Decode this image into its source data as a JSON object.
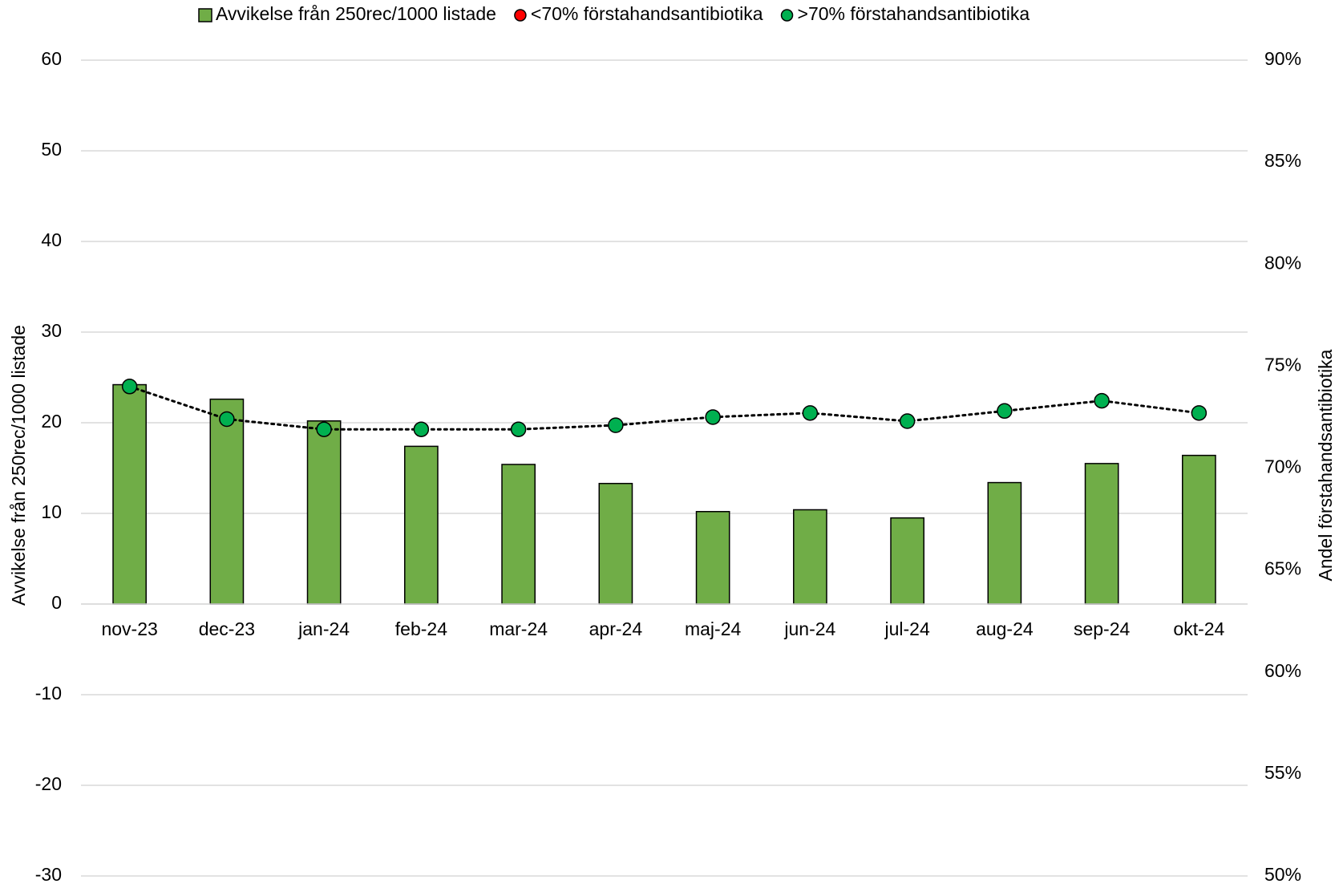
{
  "chart_data": {
    "type": "bar_line",
    "categories": [
      "nov-23",
      "dec-23",
      "jan-24",
      "feb-24",
      "mar-24",
      "apr-24",
      "maj-24",
      "jun-24",
      "jul-24",
      "aug-24",
      "sep-24",
      "okt-24"
    ],
    "series": [
      {
        "name": "Avvikelse från 250rec/1000 listade",
        "color": "#70ad47",
        "type": "bar",
        "values": [
          24.2,
          22.6,
          20.2,
          17.4,
          15.4,
          13.3,
          10.2,
          10.4,
          9.5,
          13.4,
          15.5,
          16.4
        ]
      },
      {
        "name": "<70% förstahandsantibiotika",
        "color": "#ff0000",
        "type": "scatter",
        "axis": "y2",
        "values": [
          null,
          null,
          null,
          null,
          null,
          null,
          null,
          null,
          null,
          null,
          null,
          null
        ]
      },
      {
        "name": ">70% förstahandsantibiotika",
        "color": "#00b050",
        "type": "line",
        "axis": "y2",
        "values": [
          74.0,
          72.4,
          71.9,
          71.9,
          71.9,
          72.1,
          72.5,
          72.7,
          72.3,
          72.8,
          73.3,
          72.7
        ]
      }
    ],
    "ylabel": "Avvikelse från 250rec/1000 listade",
    "y2label": "Andel förstahandsantibiotika",
    "ylim": [
      -30,
      60
    ],
    "yticks": [
      -30,
      -20,
      -10,
      0,
      10,
      20,
      30,
      40,
      50,
      60
    ],
    "y2lim": [
      50,
      90
    ],
    "y2ticks": [
      {
        "value": 50,
        "label": "50%"
      },
      {
        "value": 55,
        "label": "55%"
      },
      {
        "value": 60,
        "label": "60%"
      },
      {
        "value": 65,
        "label": "65%"
      },
      {
        "value": 70,
        "label": "70%"
      },
      {
        "value": 75,
        "label": "75%"
      },
      {
        "value": 80,
        "label": "80%"
      },
      {
        "value": 85,
        "label": "85%"
      },
      {
        "value": 90,
        "label": "90%"
      }
    ],
    "grid": true,
    "legend": "top"
  }
}
